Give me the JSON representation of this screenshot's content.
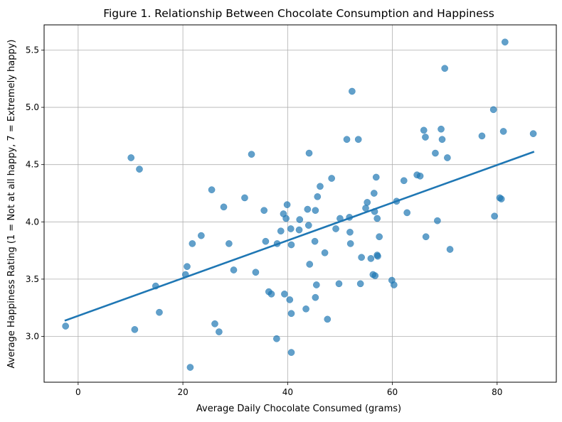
{
  "chart_data": {
    "type": "scatter",
    "title": "Figure 1. Relationship Between Chocolate Consumption and Happiness",
    "xlabel": "Average Daily Chocolate Consumed (grams)",
    "ylabel": "Average Happiness Rating (1 = Not at all happy, 7 = Extremely happy)",
    "xlim": [
      -6.5,
      91.3
    ],
    "ylim": [
      2.6,
      5.72
    ],
    "x_ticks": [
      0,
      20,
      40,
      60,
      80
    ],
    "y_ticks": [
      3.0,
      3.5,
      4.0,
      4.5,
      5.0,
      5.5
    ],
    "x_tick_labels": [
      "0",
      "20",
      "40",
      "60",
      "80"
    ],
    "y_tick_labels": [
      "3.0",
      "3.5",
      "4.0",
      "4.5",
      "5.0",
      "5.5"
    ],
    "grid": true,
    "point_color": "#1f77b4",
    "line_color": "#1f77b4",
    "points": [
      {
        "x": -2.4,
        "y": 3.09
      },
      {
        "x": 10.1,
        "y": 4.56
      },
      {
        "x": 10.8,
        "y": 3.06
      },
      {
        "x": 11.7,
        "y": 4.46
      },
      {
        "x": 14.8,
        "y": 3.44
      },
      {
        "x": 15.5,
        "y": 3.21
      },
      {
        "x": 20.5,
        "y": 3.54
      },
      {
        "x": 20.8,
        "y": 3.61
      },
      {
        "x": 21.4,
        "y": 2.73
      },
      {
        "x": 21.8,
        "y": 3.81
      },
      {
        "x": 23.5,
        "y": 3.88
      },
      {
        "x": 25.5,
        "y": 4.28
      },
      {
        "x": 26.1,
        "y": 3.11
      },
      {
        "x": 26.9,
        "y": 3.04
      },
      {
        "x": 27.8,
        "y": 4.13
      },
      {
        "x": 28.8,
        "y": 3.81
      },
      {
        "x": 29.7,
        "y": 3.58
      },
      {
        "x": 31.8,
        "y": 4.21
      },
      {
        "x": 33.1,
        "y": 4.59
      },
      {
        "x": 33.9,
        "y": 3.56
      },
      {
        "x": 35.5,
        "y": 4.1
      },
      {
        "x": 35.8,
        "y": 3.83
      },
      {
        "x": 36.4,
        "y": 3.39
      },
      {
        "x": 36.9,
        "y": 3.37
      },
      {
        "x": 37.9,
        "y": 2.98
      },
      {
        "x": 38.0,
        "y": 3.81
      },
      {
        "x": 38.7,
        "y": 3.92
      },
      {
        "x": 39.2,
        "y": 4.07
      },
      {
        "x": 39.4,
        "y": 3.37
      },
      {
        "x": 39.7,
        "y": 4.03
      },
      {
        "x": 39.9,
        "y": 4.15
      },
      {
        "x": 40.4,
        "y": 3.32
      },
      {
        "x": 40.6,
        "y": 3.94
      },
      {
        "x": 40.7,
        "y": 3.8
      },
      {
        "x": 40.7,
        "y": 3.2
      },
      {
        "x": 40.7,
        "y": 2.86
      },
      {
        "x": 42.2,
        "y": 3.93
      },
      {
        "x": 42.3,
        "y": 4.02
      },
      {
        "x": 43.5,
        "y": 3.24
      },
      {
        "x": 43.8,
        "y": 4.11
      },
      {
        "x": 44.0,
        "y": 3.97
      },
      {
        "x": 44.1,
        "y": 4.6
      },
      {
        "x": 44.2,
        "y": 3.63
      },
      {
        "x": 45.2,
        "y": 3.83
      },
      {
        "x": 45.3,
        "y": 4.1
      },
      {
        "x": 45.3,
        "y": 3.34
      },
      {
        "x": 45.5,
        "y": 3.45
      },
      {
        "x": 45.7,
        "y": 4.22
      },
      {
        "x": 46.2,
        "y": 4.31
      },
      {
        "x": 47.1,
        "y": 3.73
      },
      {
        "x": 47.6,
        "y": 3.15
      },
      {
        "x": 48.4,
        "y": 4.38
      },
      {
        "x": 49.2,
        "y": 3.94
      },
      {
        "x": 49.8,
        "y": 3.46
      },
      {
        "x": 50.0,
        "y": 4.03
      },
      {
        "x": 51.3,
        "y": 4.72
      },
      {
        "x": 51.8,
        "y": 4.04
      },
      {
        "x": 51.9,
        "y": 3.91
      },
      {
        "x": 52.0,
        "y": 3.81
      },
      {
        "x": 52.3,
        "y": 5.14
      },
      {
        "x": 53.5,
        "y": 4.72
      },
      {
        "x": 53.9,
        "y": 3.46
      },
      {
        "x": 54.1,
        "y": 3.69
      },
      {
        "x": 54.9,
        "y": 4.12
      },
      {
        "x": 55.2,
        "y": 4.17
      },
      {
        "x": 55.9,
        "y": 3.68
      },
      {
        "x": 56.3,
        "y": 3.54
      },
      {
        "x": 56.5,
        "y": 4.25
      },
      {
        "x": 56.6,
        "y": 4.09
      },
      {
        "x": 56.7,
        "y": 3.53
      },
      {
        "x": 56.9,
        "y": 4.39
      },
      {
        "x": 57.1,
        "y": 4.03
      },
      {
        "x": 57.1,
        "y": 3.71
      },
      {
        "x": 57.2,
        "y": 3.7
      },
      {
        "x": 57.5,
        "y": 3.87
      },
      {
        "x": 59.9,
        "y": 3.49
      },
      {
        "x": 60.3,
        "y": 3.45
      },
      {
        "x": 60.8,
        "y": 4.18
      },
      {
        "x": 62.2,
        "y": 4.36
      },
      {
        "x": 62.8,
        "y": 4.08
      },
      {
        "x": 64.7,
        "y": 4.41
      },
      {
        "x": 65.3,
        "y": 4.4
      },
      {
        "x": 66.0,
        "y": 4.8
      },
      {
        "x": 66.3,
        "y": 4.74
      },
      {
        "x": 66.4,
        "y": 3.87
      },
      {
        "x": 68.2,
        "y": 4.6
      },
      {
        "x": 68.6,
        "y": 4.01
      },
      {
        "x": 69.3,
        "y": 4.81
      },
      {
        "x": 69.5,
        "y": 4.72
      },
      {
        "x": 70.0,
        "y": 5.34
      },
      {
        "x": 70.5,
        "y": 4.56
      },
      {
        "x": 71.0,
        "y": 3.76
      },
      {
        "x": 77.1,
        "y": 4.75
      },
      {
        "x": 79.3,
        "y": 4.98
      },
      {
        "x": 79.5,
        "y": 4.05
      },
      {
        "x": 80.5,
        "y": 4.21
      },
      {
        "x": 80.8,
        "y": 4.2
      },
      {
        "x": 81.2,
        "y": 4.79
      },
      {
        "x": 81.5,
        "y": 5.57
      },
      {
        "x": 86.9,
        "y": 4.77
      }
    ],
    "trend_line": {
      "x": [
        -2.4,
        86.9
      ],
      "y": [
        3.14,
        4.61
      ]
    }
  }
}
